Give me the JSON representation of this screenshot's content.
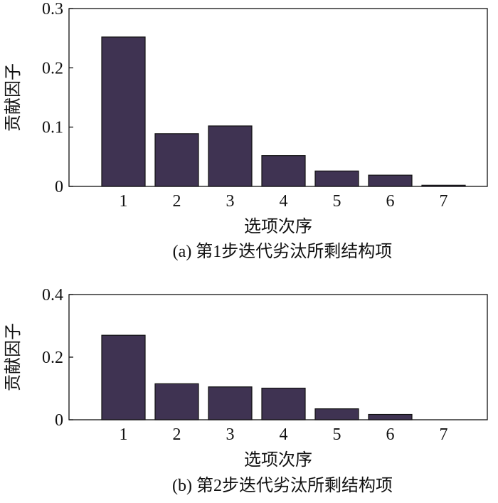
{
  "chart_data": [
    {
      "type": "bar",
      "caption": "(a) 第1步迭代劣汰所剩结构项",
      "xlabel": "选项次序",
      "ylabel": "贡献因子",
      "categories": [
        "1",
        "2",
        "3",
        "4",
        "5",
        "6",
        "7"
      ],
      "values": [
        0.252,
        0.089,
        0.102,
        0.052,
        0.026,
        0.019,
        0.002
      ],
      "ylim": [
        0,
        0.3
      ],
      "yticks": [
        0,
        0.1,
        0.2,
        0.3
      ],
      "ytick_labels": [
        "0",
        "0.1",
        "0.2",
        "0.3"
      ],
      "grid": false,
      "bar_color": "#3f3352"
    },
    {
      "type": "bar",
      "caption": "(b) 第2步迭代劣汰所剩结构项",
      "xlabel": "选项次序",
      "ylabel": "贡献因子",
      "categories": [
        "1",
        "2",
        "3",
        "4",
        "5",
        "6",
        "7"
      ],
      "values": [
        0.27,
        0.115,
        0.105,
        0.101,
        0.035,
        0.017,
        0.0
      ],
      "ylim": [
        0,
        0.4
      ],
      "yticks": [
        0,
        0.2,
        0.4
      ],
      "ytick_labels": [
        "0",
        "0.2",
        "0.4"
      ],
      "grid": false,
      "bar_color": "#3f3352"
    }
  ]
}
